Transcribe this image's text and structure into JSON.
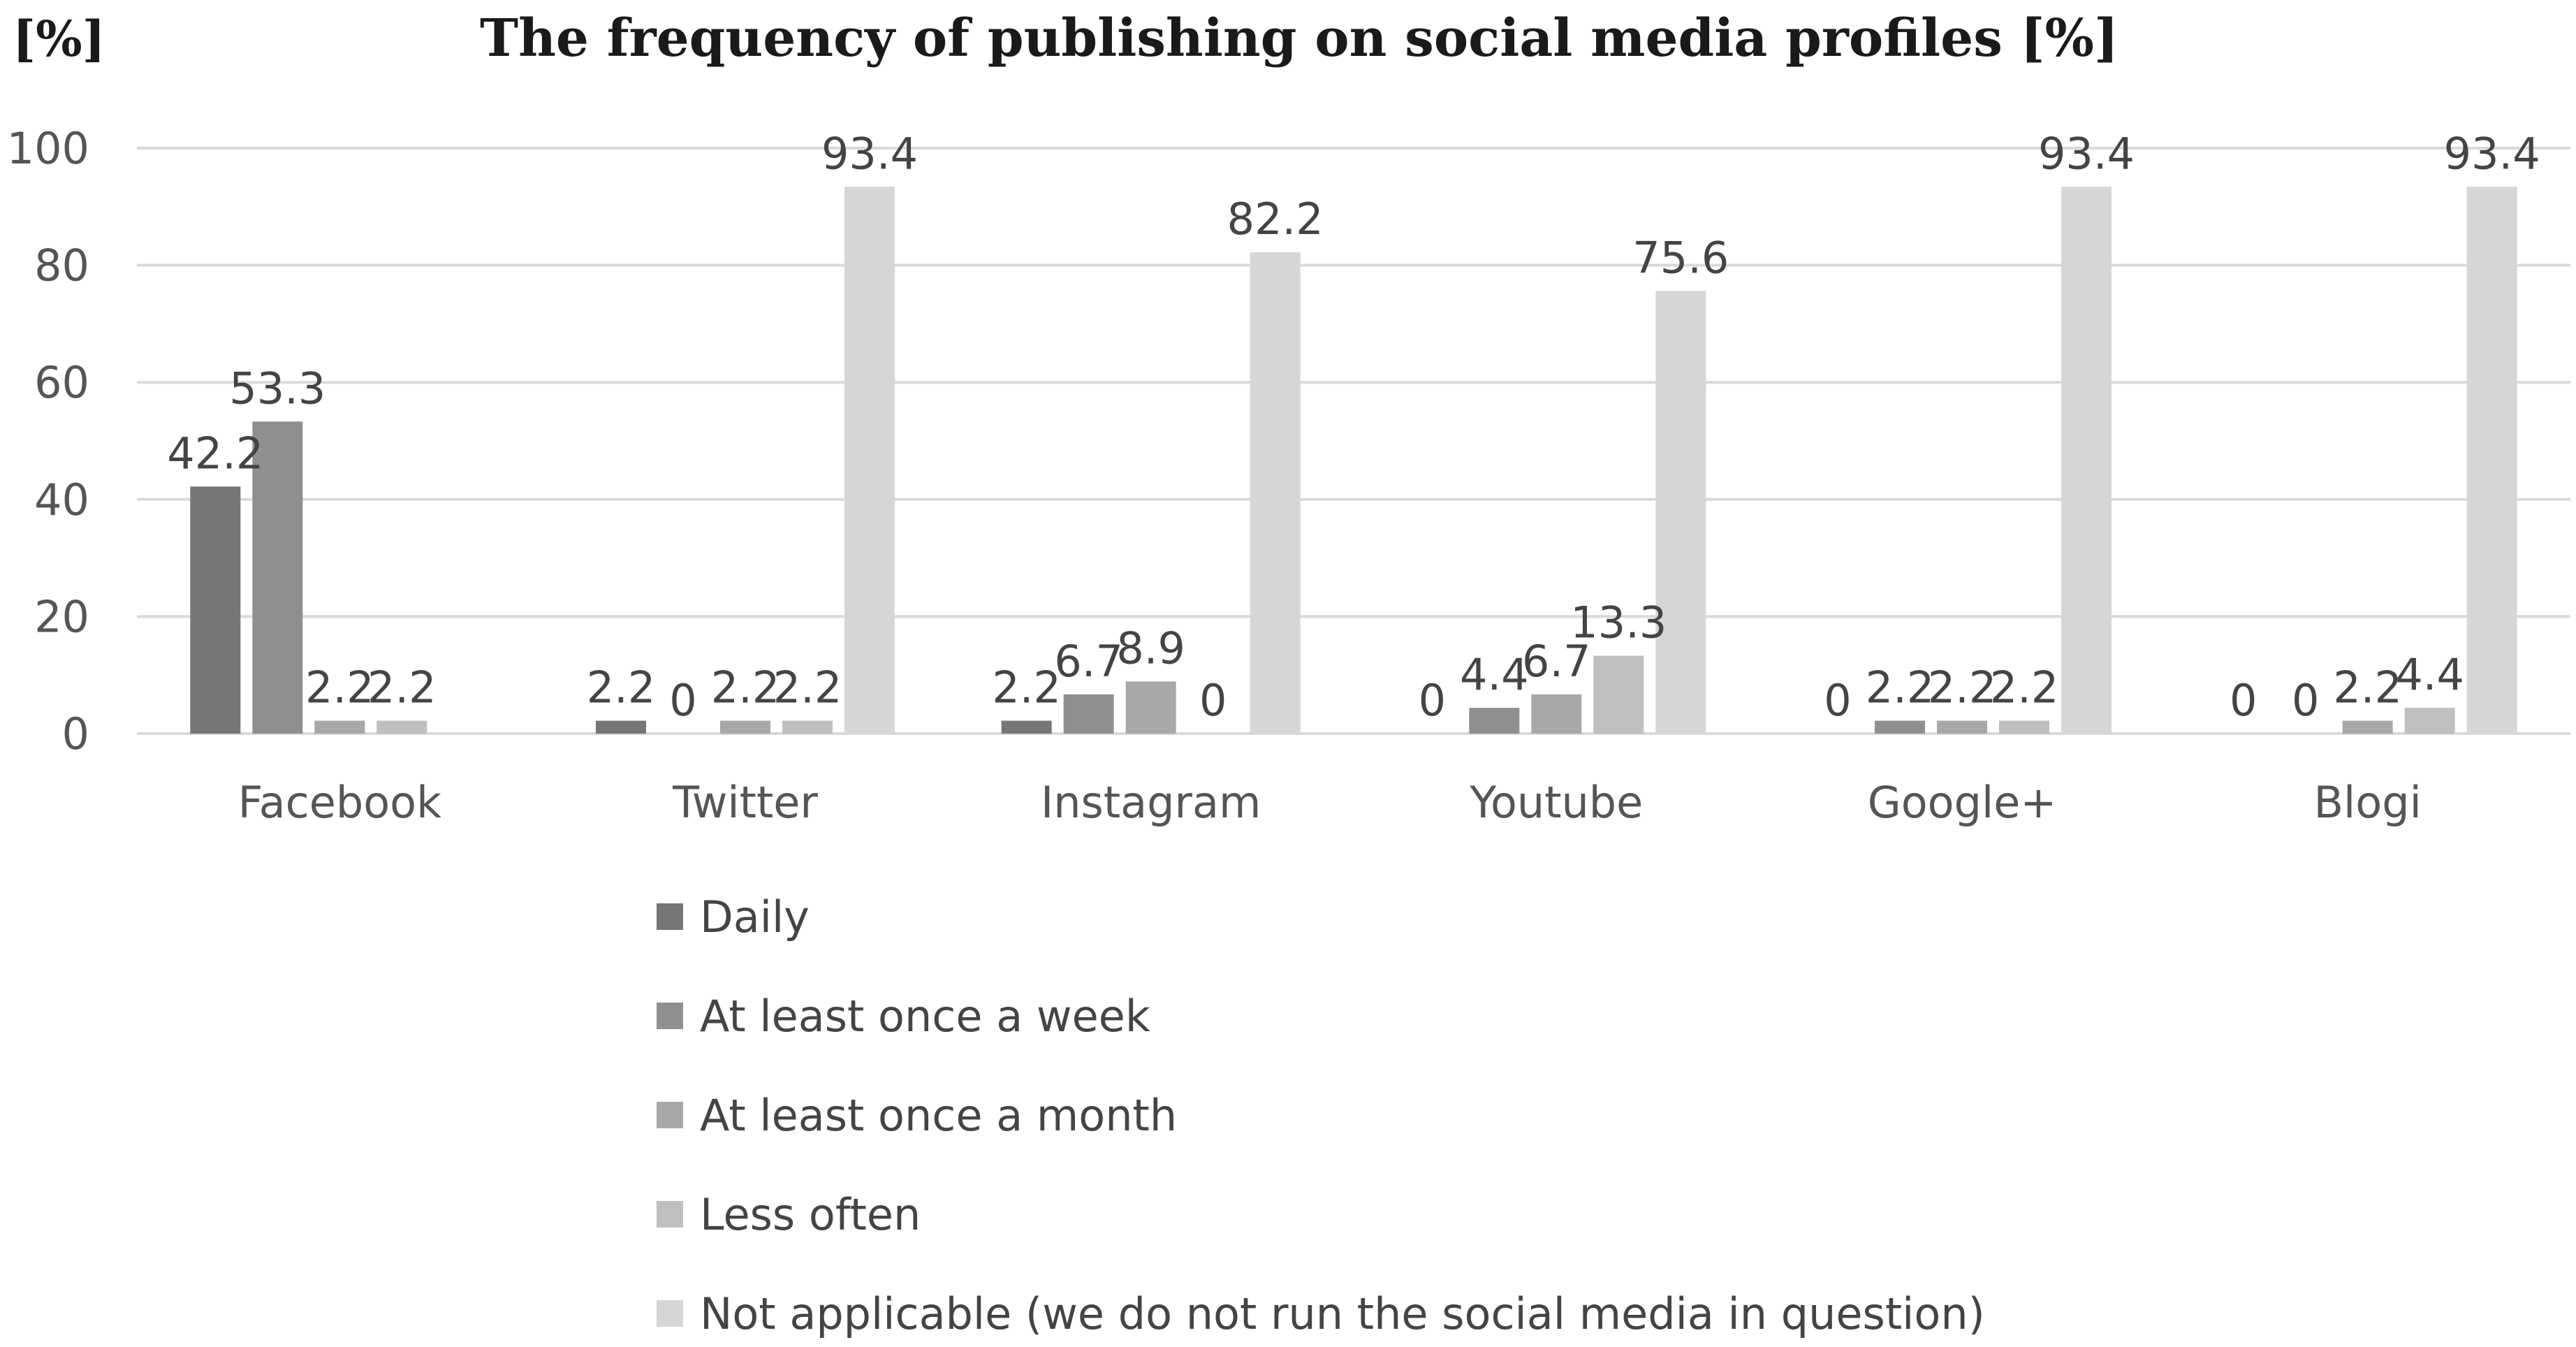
{
  "chart_data": {
    "type": "bar",
    "title": "The frequency of publishing on social media profiles [%]",
    "ylabel": "[%]",
    "xlabel": "",
    "ylim": [
      0,
      100
    ],
    "yticks": [
      "0",
      "20",
      "40",
      "60",
      "80",
      "100"
    ],
    "grid": true,
    "legend_position": "bottom",
    "categories": [
      "Facebook",
      "Twitter",
      "Instagram",
      "Youtube",
      "Google+",
      "Blogi"
    ],
    "series": [
      {
        "name": "Daily",
        "color": "#767676",
        "values": [
          42.2,
          2.2,
          2.2,
          0,
          0,
          0
        ]
      },
      {
        "name": "At least once a week",
        "color": "#8f8f8f",
        "values": [
          53.3,
          0,
          6.7,
          4.4,
          2.2,
          0
        ]
      },
      {
        "name": "At least once a month",
        "color": "#a8a8a8",
        "values": [
          2.2,
          2.2,
          8.9,
          6.7,
          2.2,
          2.2
        ]
      },
      {
        "name": "Less often",
        "color": "#bfbfbf",
        "values": [
          2.2,
          2.2,
          0,
          13.3,
          2.2,
          4.4
        ]
      },
      {
        "name": "Not applicable (we do not run the social media in question)",
        "color": "#d6d6d6",
        "values": [
          0,
          93.4,
          82.2,
          75.6,
          93.4,
          93.4
        ]
      }
    ],
    "data_labels": [
      [
        "42.2",
        "2.2",
        "2.2",
        "0",
        "0",
        "0"
      ],
      [
        "53.3",
        "0",
        "6.7",
        "4.4",
        "2.2",
        "0"
      ],
      [
        "2.2",
        "2.2",
        "8.9",
        "6.7",
        "2.2",
        "2.2"
      ],
      [
        "2.2",
        "2.2",
        "0",
        "13.3",
        "2.2",
        "4.4"
      ],
      [
        "",
        "93.4",
        "82.2",
        "75.6",
        "93.4",
        "93.4"
      ]
    ]
  }
}
